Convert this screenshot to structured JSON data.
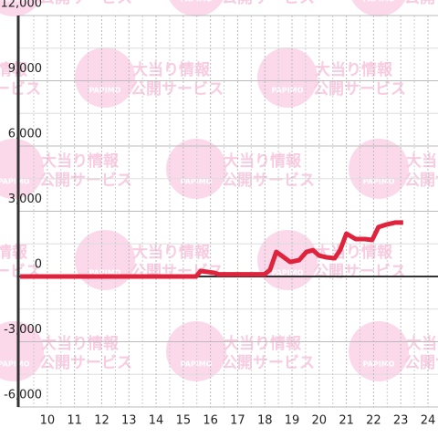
{
  "chart_data": {
    "type": "line",
    "x": [
      9,
      15.47,
      15.64,
      16.14,
      16.3,
      17.99,
      18.19,
      18.42,
      18.66,
      18.93,
      19.26,
      19.53,
      19.77,
      20.0,
      20.27,
      20.57,
      20.77,
      21.0,
      21.34,
      21.68,
      21.95,
      22.18,
      22.48,
      22.79,
      23.09
    ],
    "series": [
      {
        "color": "#e0233d",
        "values": [
          0,
          0,
          250,
          170,
          100,
          100,
          300,
          1130,
          920,
          670,
          750,
          1130,
          1210,
          960,
          880,
          840,
          1210,
          1970,
          1720,
          1720,
          1680,
          2270,
          2390,
          2480,
          2480
        ]
      }
    ],
    "xlim": [
      8.93,
      24.37
    ],
    "xticks": [
      10,
      11,
      12,
      13,
      14,
      15,
      16,
      17,
      18,
      19,
      20,
      21,
      22,
      23,
      24
    ],
    "ylim": [
      -6000,
      12000
    ],
    "yticks": [
      {
        "value": -6000,
        "label": "-6,000"
      },
      {
        "value": -3000,
        "label": "-3,000"
      },
      0,
      {
        "value": 3000,
        "label": "3,000"
      },
      {
        "value": 6000,
        "label": "6,000"
      },
      {
        "value": 9000,
        "label": "9,000"
      },
      {
        "value": 12000,
        "label": "12,000"
      }
    ],
    "y_minor_grid": [
      -4500,
      -1500,
      1500,
      4500,
      7500,
      10500
    ],
    "x_minor_grid": [
      9.5,
      10.5,
      11.5,
      12.5,
      13.5,
      14.5,
      15.5,
      16.5,
      17.5,
      18.5,
      19.5,
      20.5,
      21.5,
      22.5,
      23.5
    ],
    "grid": true
  },
  "watermark": {
    "logo": "PAPIMO",
    "line1": "大当り情報",
    "line2": "公開サービス"
  }
}
